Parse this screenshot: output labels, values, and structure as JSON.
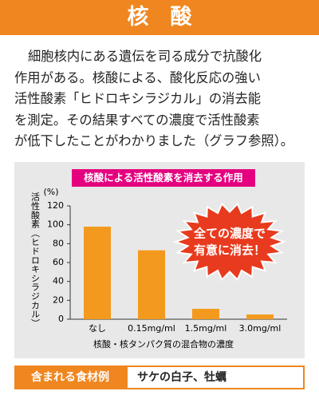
{
  "header": {
    "title": "核　酸"
  },
  "body": {
    "lines": [
      "細胞核内にある遺伝を司る成分で抗酸化",
      "作用がある。核酸による、酸化反応の強い",
      "活性酸素「ヒドロキシラジカル」の消去能",
      "を測定。その結果すべての濃度で活性酸素",
      "が低下したことがわかりました（グラフ参照）。"
    ]
  },
  "chart_data": {
    "type": "bar",
    "title": "核酸による活性酸素を消去する作用",
    "y_label": "活性酸素（ヒドロキシラジカル）",
    "y_unit": "(%)",
    "x_label": "核酸・核タンパク質の混合物の濃度",
    "categories": [
      "なし",
      "0.15mg/ml",
      "1.5mg/ml",
      "3.0mg/ml"
    ],
    "values": [
      98,
      73,
      11,
      5
    ],
    "color": "#f39a1e",
    "ylim": [
      0,
      120
    ],
    "yticks": [
      0,
      20,
      40,
      60,
      80,
      100,
      120
    ],
    "annotation": [
      "全ての濃度で",
      "有意に消去！"
    ]
  },
  "footer": {
    "label": "含まれる食材例",
    "text": "サケの白子、牡蠣"
  }
}
